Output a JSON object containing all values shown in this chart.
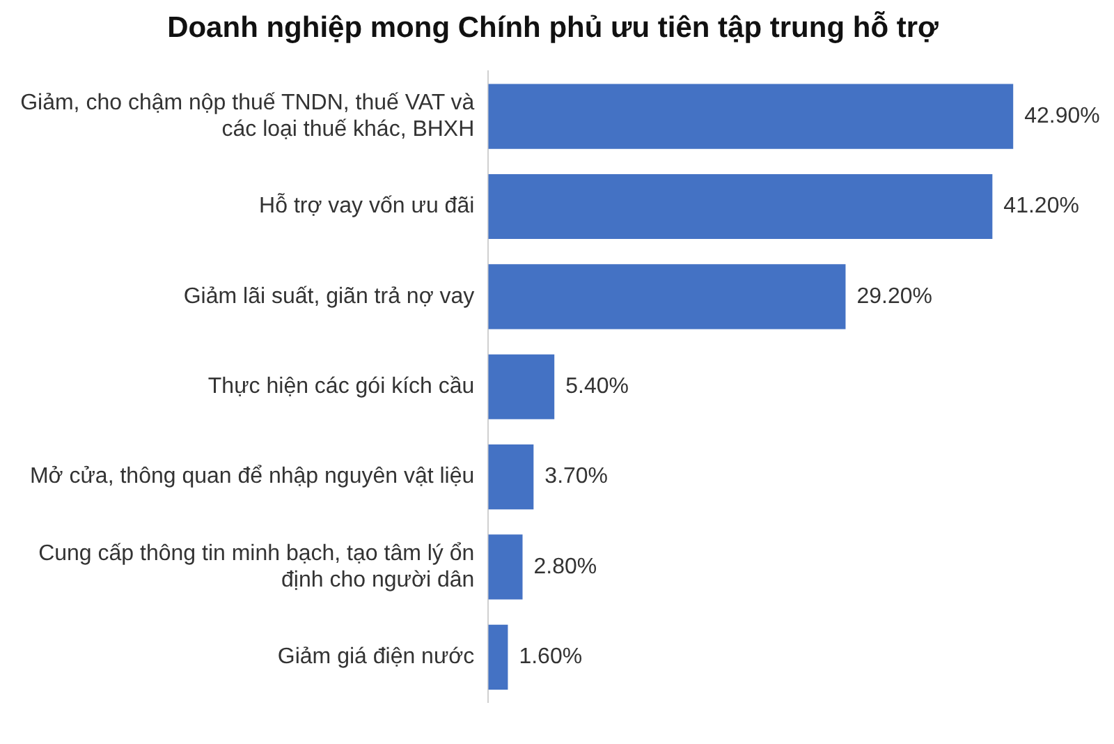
{
  "chart_data": {
    "type": "bar",
    "orientation": "horizontal",
    "title": "Doanh nghiệp mong Chính phủ ưu tiên tập trung hỗ trợ",
    "categories": [
      "Giảm, cho chậm nộp thuế TNDN, thuế VAT và các loại thuế khác, BHXH",
      "Hỗ trợ vay vốn ưu đãi",
      "Giảm lãi suất, giãn trả nợ vay",
      "Thực hiện các gói kích cầu",
      "Mở cửa, thông quan để nhập nguyên vật liệu",
      "Cung cấp thông tin minh bạch, tạo tâm lý ổn định cho người dân",
      "Giảm giá điện nước"
    ],
    "values": [
      42.9,
      41.2,
      29.2,
      5.4,
      3.7,
      2.8,
      1.6
    ],
    "value_labels": [
      "42.90%",
      "41.20%",
      "29.20%",
      "5.40%",
      "3.70%",
      "2.80%",
      "1.60%"
    ],
    "color": "#4472c4",
    "grid": false,
    "legend": false,
    "tick_labels": "y"
  }
}
